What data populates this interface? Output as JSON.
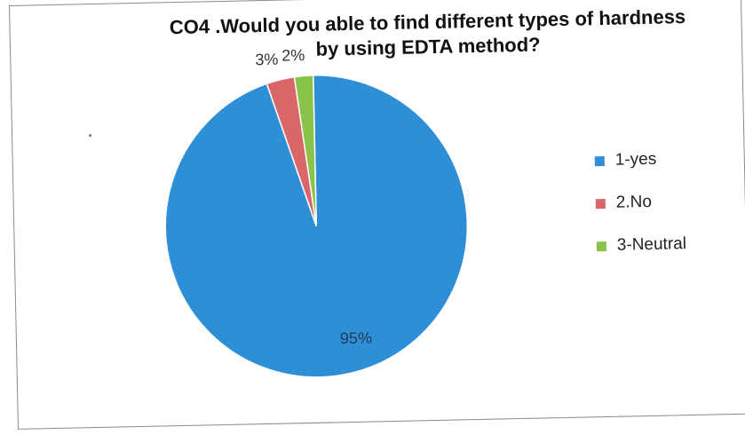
{
  "chart_data": {
    "type": "pie",
    "title": "CO4 .Would you able to find different types of hardness by using EDTA method?",
    "title_lines": [
      "CO4 .Would you able to find different types of hardness",
      "by using EDTA method?"
    ],
    "categories": [
      "1-yes",
      "2.No",
      "3-Neutral"
    ],
    "values": [
      95,
      3,
      2
    ],
    "value_labels": [
      "95%",
      "3%",
      "2%"
    ],
    "colors": [
      "#2f8fd6",
      "#d9676a",
      "#8bc34a"
    ],
    "legend_placement": "right"
  }
}
